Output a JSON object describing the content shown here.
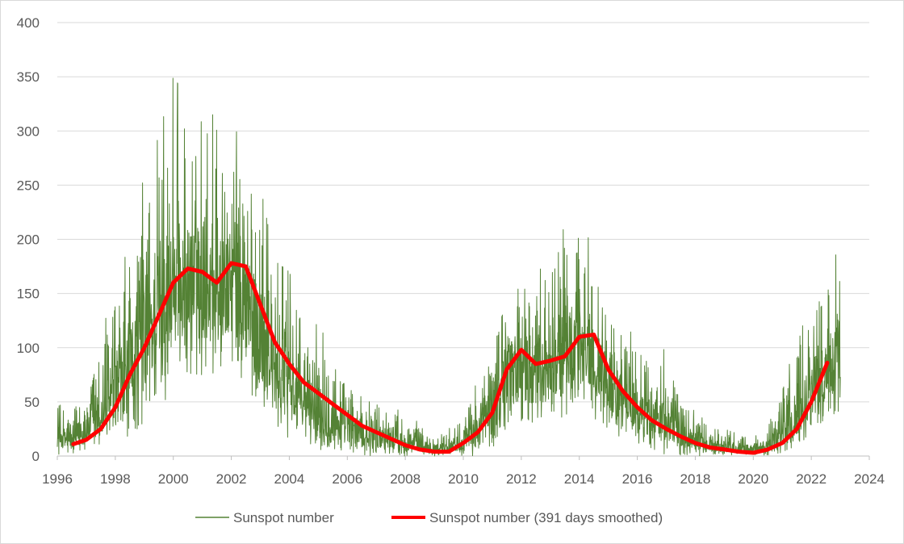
{
  "chart_data": {
    "type": "line",
    "title": "",
    "xlabel": "",
    "ylabel": "",
    "xlim": [
      1996,
      2024
    ],
    "ylim": [
      0,
      400
    ],
    "x_ticks": [
      "1996",
      "1998",
      "2000",
      "2002",
      "2004",
      "2006",
      "2008",
      "2010",
      "2012",
      "2014",
      "2016",
      "2018",
      "2020",
      "2022",
      "2024"
    ],
    "y_ticks": [
      "0",
      "50",
      "100",
      "150",
      "200",
      "250",
      "300",
      "350",
      "400"
    ],
    "grid": "horizontal",
    "legend_position": "bottom",
    "series": [
      {
        "name": "Sunspot number",
        "color": "#548235",
        "style": "thin-daily",
        "envelope": {
          "x": [
            1996.0,
            1996.5,
            1997.0,
            1997.5,
            1998.0,
            1998.5,
            1999.0,
            1999.5,
            2000.0,
            2000.5,
            2001.0,
            2001.5,
            2002.0,
            2002.5,
            2003.0,
            2003.5,
            2004.0,
            2004.5,
            2005.0,
            2005.5,
            2006.0,
            2006.5,
            2007.0,
            2007.5,
            2008.0,
            2008.5,
            2009.0,
            2009.5,
            2010.0,
            2010.5,
            2011.0,
            2011.5,
            2012.0,
            2012.5,
            2013.0,
            2013.5,
            2014.0,
            2014.5,
            2015.0,
            2015.5,
            2016.0,
            2016.5,
            2017.0,
            2017.5,
            2018.0,
            2018.5,
            2019.0,
            2019.5,
            2020.0,
            2020.5,
            2021.0,
            2021.5,
            2022.0,
            2022.5,
            2023.0
          ],
          "min": [
            0,
            0,
            0,
            0,
            5,
            15,
            30,
            45,
            60,
            70,
            65,
            70,
            80,
            60,
            40,
            25,
            15,
            10,
            5,
            0,
            0,
            0,
            0,
            0,
            0,
            0,
            0,
            0,
            0,
            0,
            5,
            20,
            30,
            25,
            30,
            35,
            40,
            35,
            25,
            15,
            10,
            5,
            0,
            0,
            0,
            0,
            0,
            0,
            0,
            0,
            0,
            5,
            20,
            30,
            40
          ],
          "max": [
            56,
            40,
            80,
            110,
            160,
            195,
            260,
            295,
            350,
            330,
            353,
            300,
            310,
            280,
            250,
            180,
            170,
            130,
            120,
            100,
            80,
            60,
            55,
            45,
            40,
            30,
            20,
            25,
            40,
            70,
            110,
            190,
            180,
            160,
            200,
            210,
            220,
            190,
            150,
            120,
            110,
            90,
            100,
            60,
            40,
            30,
            25,
            20,
            20,
            25,
            70,
            100,
            150,
            165,
            195
          ]
        }
      },
      {
        "name": "Sunspot number (391 days smoothed)",
        "color": "#ff0000",
        "style": "thick",
        "x": [
          1996.55,
          1997.0,
          1997.5,
          1998.0,
          1998.5,
          1999.0,
          1999.5,
          2000.0,
          2000.5,
          2001.0,
          2001.5,
          2002.0,
          2002.5,
          2003.0,
          2003.5,
          2004.0,
          2004.5,
          2005.0,
          2005.5,
          2006.0,
          2006.5,
          2007.0,
          2007.5,
          2008.0,
          2008.5,
          2009.0,
          2009.5,
          2010.0,
          2010.5,
          2011.0,
          2011.5,
          2012.0,
          2012.5,
          2013.0,
          2013.5,
          2014.0,
          2014.5,
          2015.0,
          2015.5,
          2016.0,
          2016.5,
          2017.0,
          2017.5,
          2018.0,
          2018.5,
          2019.0,
          2019.5,
          2020.0,
          2020.5,
          2021.0,
          2021.5,
          2022.0,
          2022.55
        ],
        "values": [
          11,
          15,
          25,
          45,
          75,
          100,
          130,
          160,
          173,
          170,
          160,
          178,
          175,
          140,
          105,
          85,
          68,
          58,
          48,
          38,
          28,
          22,
          16,
          10,
          6,
          4,
          4,
          12,
          22,
          40,
          80,
          98,
          85,
          88,
          92,
          110,
          112,
          80,
          60,
          45,
          33,
          25,
          18,
          12,
          8,
          6,
          4,
          3,
          6,
          12,
          25,
          50,
          86
        ]
      }
    ]
  }
}
